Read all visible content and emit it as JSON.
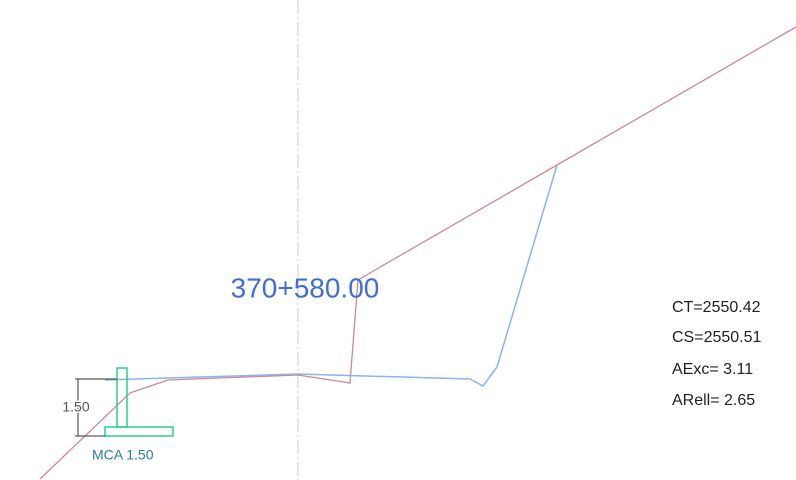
{
  "station": "370+580.00",
  "results": [
    "CT=2550.42",
    "CS=2550.51",
    "AExc= 3.11",
    "ARell= 2.65"
  ],
  "dimension": "1.50",
  "ditch_label": "MCA 1.50"
}
